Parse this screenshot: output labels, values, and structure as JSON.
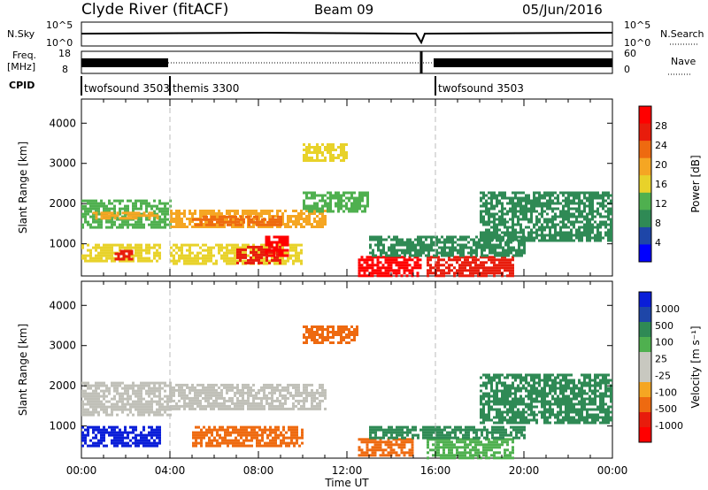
{
  "header": {
    "station": "Clyde River (fitACF)",
    "beam": "Beam 09",
    "date": "05/Jun/2016"
  },
  "left_labels": {
    "nsky": "N.Sky",
    "freq_line1": "Freq.",
    "freq_line2": "[MHz]",
    "cpid": "CPID"
  },
  "right_labels": {
    "nsearch": "N.Search",
    "nave": "Nave"
  },
  "strip_axes": {
    "noise_left": [
      "10^5",
      "10^0"
    ],
    "noise_right": [
      "10^5",
      "10^0"
    ],
    "freq_left": [
      "18",
      "8"
    ],
    "nave_right": [
      "60",
      "0"
    ]
  },
  "cpid_segments": [
    {
      "label": "twofsound 3503",
      "start_hour": 0
    },
    {
      "label": "themis 3300",
      "start_hour": 4
    },
    {
      "label": "twofsound 3503",
      "start_hour": 16
    }
  ],
  "colors": {
    "power": [
      "#0000ff",
      "#1e46a8",
      "#2f8a55",
      "#4fb04f",
      "#e8d22a",
      "#f5a623",
      "#ee6a10",
      "#e81c0c",
      "#ff0000"
    ],
    "velocity": [
      "#ff0000",
      "#e81c0c",
      "#ee6a10",
      "#f5a623",
      "#c8c8c0",
      "#c8c8c0",
      "#4fb04f",
      "#2f8a55",
      "#1e46a8",
      "#0a1ed8"
    ],
    "ground_scatter": "#c0c0b8"
  },
  "chart_data": [
    {
      "type": "heatmap",
      "name": "power",
      "xlabel": "",
      "ylabel": "Slant Range [km]",
      "xlim_hours": [
        0,
        24
      ],
      "ylim": [
        200,
        4600
      ],
      "yticks": [
        "1000",
        "2000",
        "3000",
        "4000"
      ],
      "colorbar_label": "Power [dB]",
      "colorbar_ticks": [
        "4",
        "8",
        "12",
        "16",
        "20",
        "24",
        "28"
      ],
      "colorbar_range": [
        0,
        30
      ],
      "regions": [
        {
          "t0": 0.0,
          "t1": 4.0,
          "r0": 1400,
          "r1": 2100,
          "value": 10
        },
        {
          "t0": 0.5,
          "t1": 3.5,
          "r0": 1650,
          "r1": 1800,
          "value": 20
        },
        {
          "t0": 0.0,
          "t1": 3.5,
          "r0": 600,
          "r1": 1000,
          "value": 16
        },
        {
          "t0": 1.5,
          "t1": 2.3,
          "r0": 600,
          "r1": 850,
          "value": 26
        },
        {
          "t0": 4.0,
          "t1": 11.0,
          "r0": 1450,
          "r1": 1850,
          "value": 18
        },
        {
          "t0": 5.0,
          "t1": 9.0,
          "r0": 1500,
          "r1": 1700,
          "value": 24
        },
        {
          "t0": 4.0,
          "t1": 10.0,
          "r0": 500,
          "r1": 1000,
          "value": 14
        },
        {
          "t0": 7.0,
          "t1": 9.0,
          "r0": 500,
          "r1": 950,
          "value": 25
        },
        {
          "t0": 8.3,
          "t1": 9.3,
          "r0": 700,
          "r1": 1200,
          "value": 30
        },
        {
          "t0": 10.0,
          "t1": 13.0,
          "r0": 1800,
          "r1": 2300,
          "value": 12
        },
        {
          "t0": 10.0,
          "t1": 12.0,
          "r0": 3100,
          "r1": 3500,
          "value": 14
        },
        {
          "t0": 12.5,
          "t1": 15.3,
          "r0": 200,
          "r1": 700,
          "value": 30
        },
        {
          "t0": 15.6,
          "t1": 19.5,
          "r0": 200,
          "r1": 700,
          "value": 26
        },
        {
          "t0": 13.0,
          "t1": 20.0,
          "r0": 700,
          "r1": 1200,
          "value": 8
        },
        {
          "t0": 18.0,
          "t1": 24.0,
          "r0": 1100,
          "r1": 2300,
          "value": 8
        }
      ]
    },
    {
      "type": "heatmap",
      "name": "velocity",
      "xlabel": "Time UT",
      "ylabel": "Slant Range [km]",
      "xlim_hours": [
        0,
        24
      ],
      "ylim": [
        200,
        4600
      ],
      "yticks": [
        "1000",
        "2000",
        "3000",
        "4000"
      ],
      "xticks": [
        "00:00",
        "04:00",
        "08:00",
        "12:00",
        "16:00",
        "20:00",
        "00:00"
      ],
      "colorbar_label": "Velocity [m s⁻¹]",
      "colorbar_ticks": [
        "1000",
        "500",
        "100",
        "25",
        "-25",
        "-100",
        "-500",
        "-1000"
      ],
      "regions": [
        {
          "t0": 0.0,
          "t1": 4.0,
          "r0": 1300,
          "r1": 2100,
          "value": "ground"
        },
        {
          "t0": 0.0,
          "t1": 3.5,
          "r0": 500,
          "r1": 1000,
          "value": 500
        },
        {
          "t0": 4.0,
          "t1": 11.0,
          "r0": 1450,
          "r1": 2050,
          "value": "ground"
        },
        {
          "t0": 5.0,
          "t1": 10.0,
          "r0": 500,
          "r1": 1000,
          "value": -150
        },
        {
          "t0": 10.0,
          "t1": 12.5,
          "r0": 3100,
          "r1": 3500,
          "value": -120
        },
        {
          "t0": 12.5,
          "t1": 15.0,
          "r0": 300,
          "r1": 700,
          "value": -300
        },
        {
          "t0": 15.6,
          "t1": 19.5,
          "r0": 200,
          "r1": 700,
          "value": 60
        },
        {
          "t0": 13.0,
          "t1": 20.0,
          "r0": 700,
          "r1": 1000,
          "value": 200
        },
        {
          "t0": 18.0,
          "t1": 24.0,
          "r0": 1100,
          "r1": 2300,
          "value": 300
        }
      ]
    }
  ]
}
